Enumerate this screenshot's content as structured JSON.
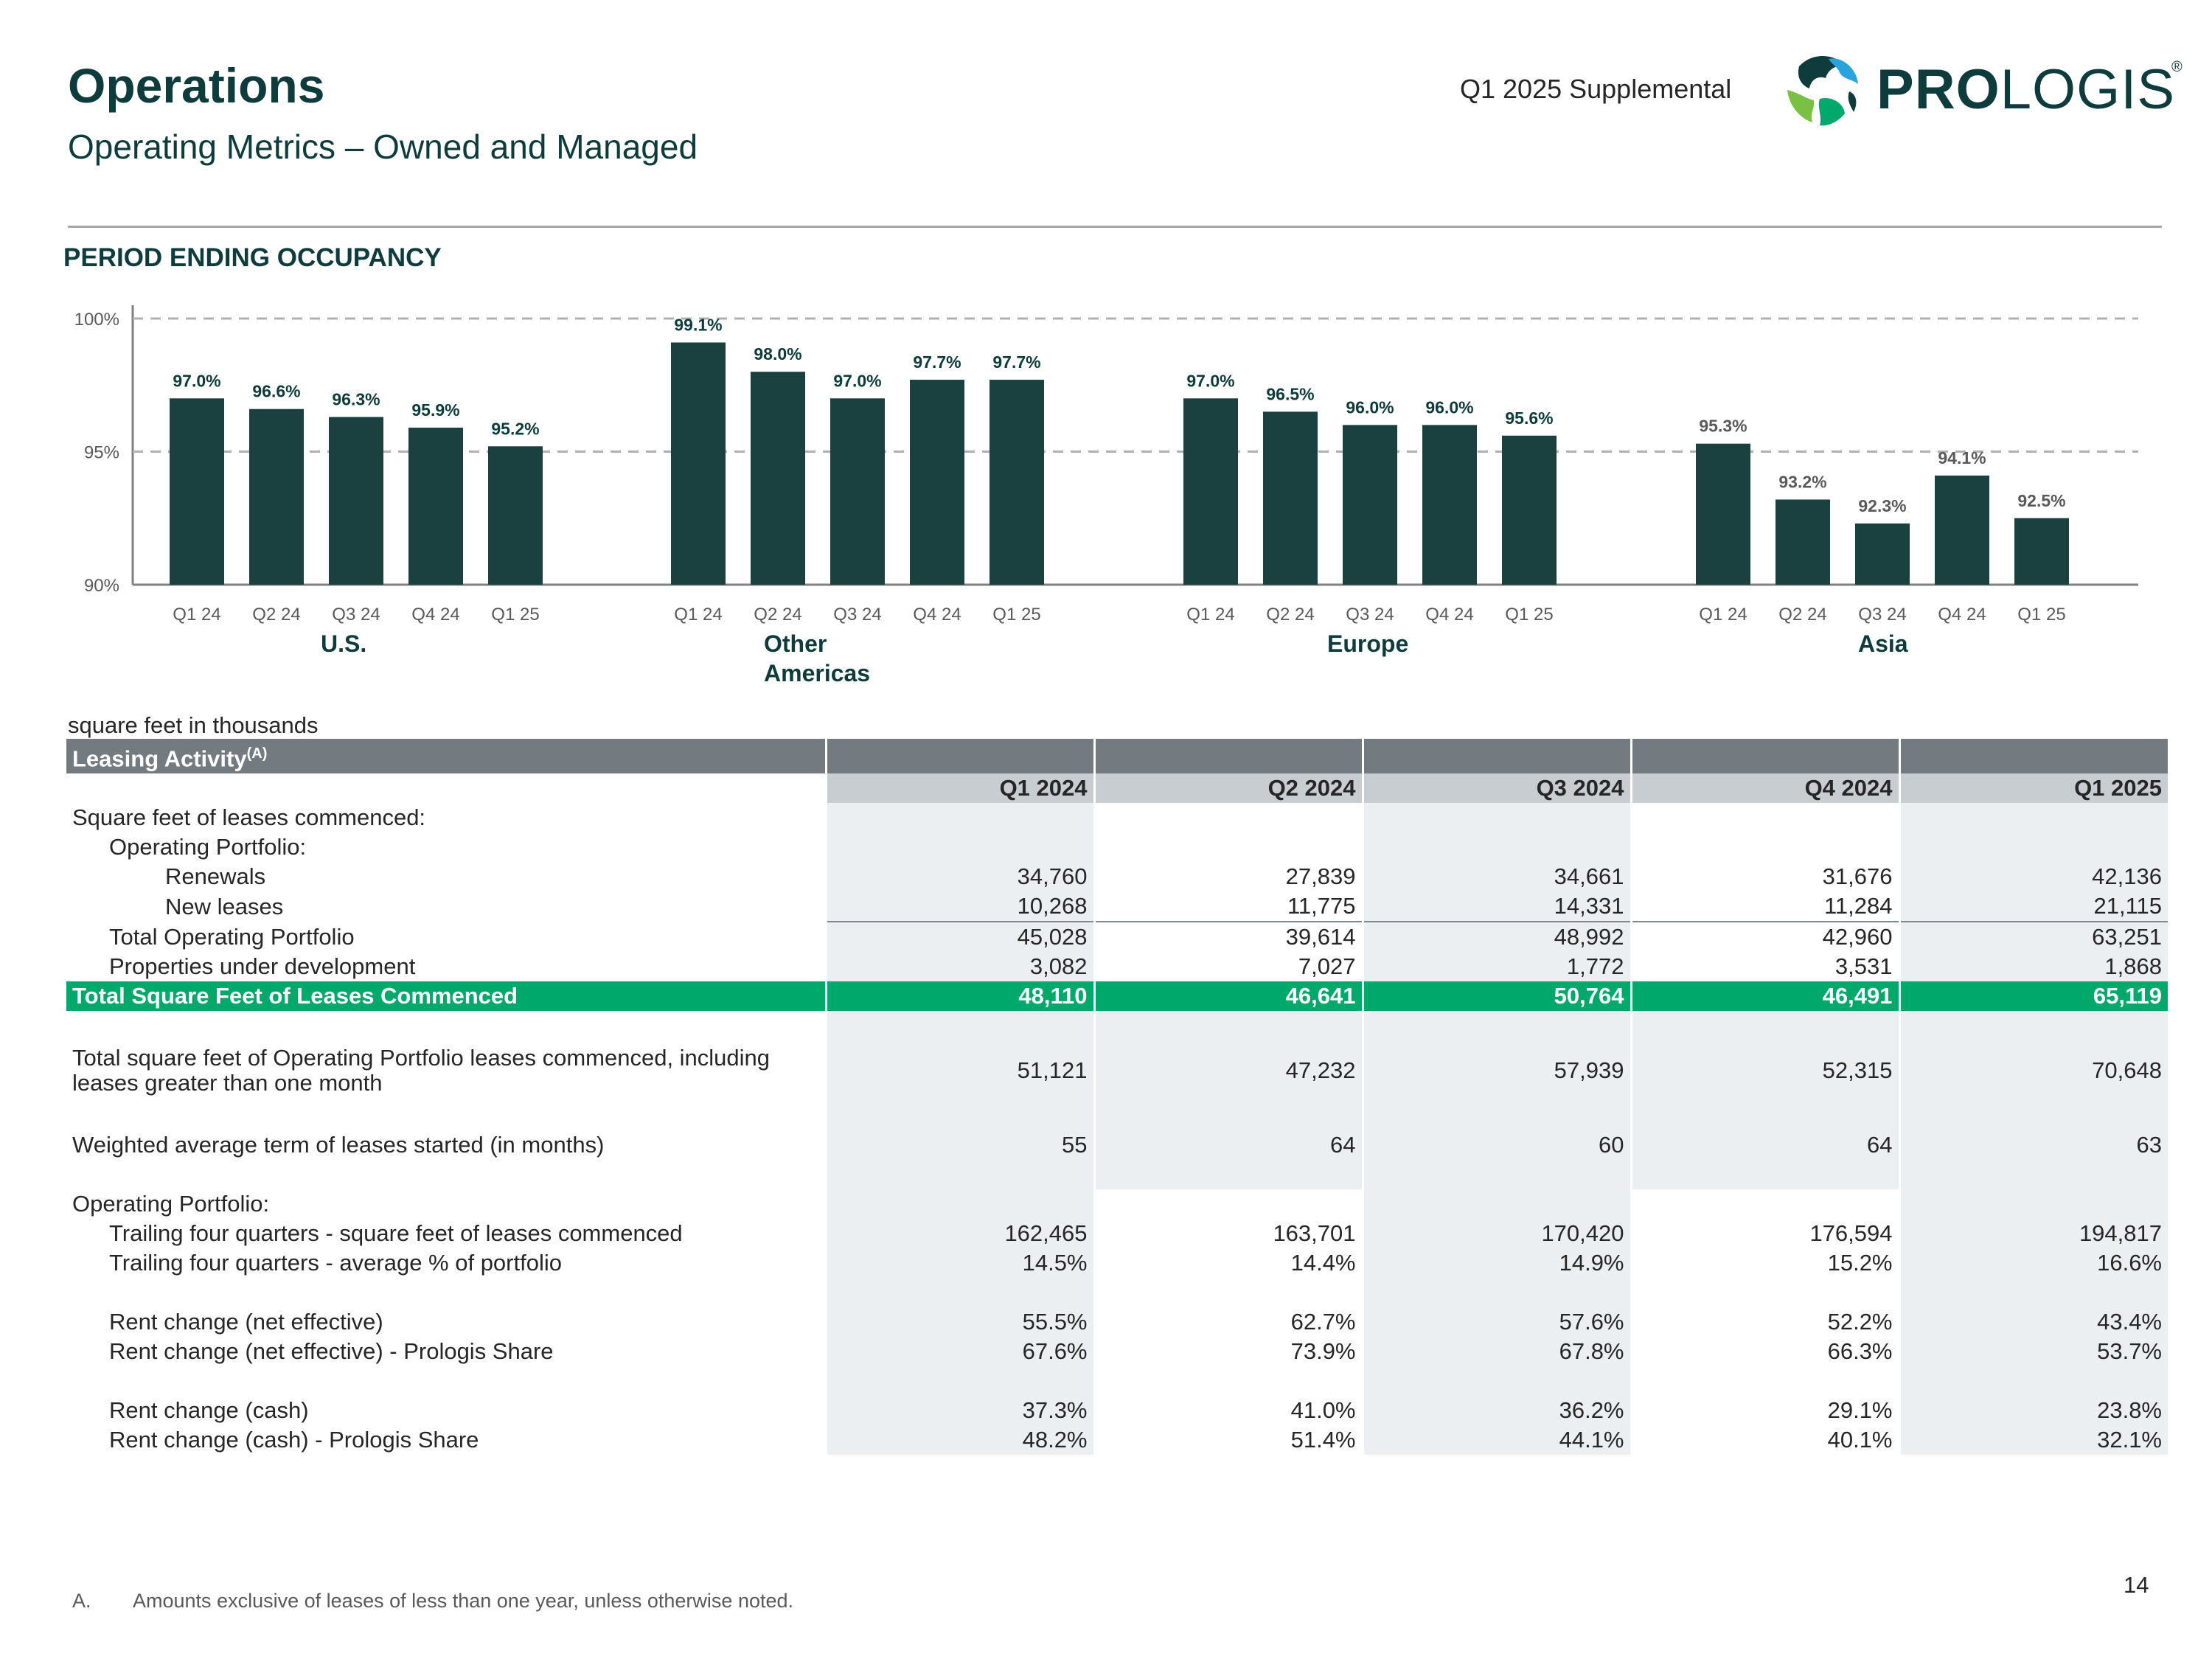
{
  "header": {
    "title": "Operations",
    "subtitle": "Operating Metrics – Owned and Managed",
    "supplemental": "Q1 2025 Supplemental",
    "logo_bold": "PRO",
    "logo_rest": "LOGIS",
    "logo_reg": "®"
  },
  "occupancy_heading": "PERIOD ENDING OCCUPANCY",
  "chart_data": {
    "type": "bar",
    "title": "PERIOD ENDING OCCUPANCY",
    "ylim": [
      90,
      100
    ],
    "yticks": [
      "100%",
      "95%",
      "90%"
    ],
    "ytick_values": [
      100,
      95,
      90
    ],
    "grid": true,
    "bar_color": "#1a4040",
    "groups": [
      {
        "name": "U.S.",
        "categories": [
          "Q1 24",
          "Q2 24",
          "Q3 24",
          "Q4 24",
          "Q1 25"
        ],
        "values": [
          97.0,
          96.6,
          96.3,
          95.9,
          95.2
        ],
        "labels": [
          "97.0%",
          "96.6%",
          "96.3%",
          "95.9%",
          "95.2%"
        ]
      },
      {
        "name": "Other Americas",
        "categories": [
          "Q1 24",
          "Q2 24",
          "Q3 24",
          "Q4 24",
          "Q1 25"
        ],
        "values": [
          99.1,
          98.0,
          97.0,
          97.7,
          97.7
        ],
        "labels": [
          "99.1%",
          "98.0%",
          "97.0%",
          "97.7%",
          "97.7%"
        ]
      },
      {
        "name": "Europe",
        "categories": [
          "Q1 24",
          "Q2 24",
          "Q3 24",
          "Q4 24",
          "Q1 25"
        ],
        "values": [
          97.0,
          96.5,
          96.0,
          96.0,
          95.6
        ],
        "labels": [
          "97.0%",
          "96.5%",
          "96.0%",
          "96.0%",
          "95.6%"
        ]
      },
      {
        "name": "Asia",
        "categories": [
          "Q1 24",
          "Q2 24",
          "Q3 24",
          "Q4 24",
          "Q1 25"
        ],
        "values": [
          95.3,
          93.2,
          92.3,
          94.1,
          92.5
        ],
        "labels": [
          "95.3%",
          "93.2%",
          "92.3%",
          "94.1%",
          "92.5%"
        ]
      }
    ]
  },
  "table": {
    "units_note": "square feet in thousands",
    "section_title": "Leasing Activity",
    "section_sup": "(A)",
    "columns": [
      "Q1 2024",
      "Q2 2024",
      "Q3 2024",
      "Q4 2024",
      "Q1 2025"
    ],
    "rows": {
      "sf_commenced_label": "Square feet of leases commenced:",
      "op_portfolio_label": "Operating Portfolio:",
      "renewals": {
        "label": "Renewals",
        "values": [
          "34,760",
          "27,839",
          "34,661",
          "31,676",
          "42,136"
        ]
      },
      "new_leases": {
        "label": "New leases",
        "values": [
          "10,268",
          "11,775",
          "14,331",
          "11,284",
          "21,115"
        ]
      },
      "total_op": {
        "label": "Total Operating Portfolio",
        "values": [
          "45,028",
          "39,614",
          "48,992",
          "42,960",
          "63,251"
        ]
      },
      "under_dev": {
        "label": "Properties under development",
        "values": [
          "3,082",
          "7,027",
          "1,772",
          "3,531",
          "1,868"
        ]
      },
      "total_sf": {
        "label": "Total Square Feet of Leases Commenced",
        "values": [
          "48,110",
          "46,641",
          "50,764",
          "46,491",
          "65,119"
        ]
      },
      "total_incl_month": {
        "label": "Total square feet of Operating Portfolio leases commenced, including leases greater than one month",
        "values": [
          "51,121",
          "47,232",
          "57,939",
          "52,315",
          "70,648"
        ]
      },
      "wat": {
        "label": "Weighted average term of leases started (in months)",
        "values": [
          "55",
          "64",
          "60",
          "64",
          "63"
        ]
      },
      "op_portfolio_label2": "Operating Portfolio:",
      "t4q_sf": {
        "label": "Trailing four quarters - square feet of leases commenced",
        "values": [
          "162,465",
          "163,701",
          "170,420",
          "176,594",
          "194,817"
        ]
      },
      "t4q_pct": {
        "label": "Trailing four quarters - average % of portfolio",
        "values": [
          "14.5%",
          "14.4%",
          "14.9%",
          "15.2%",
          "16.6%"
        ]
      },
      "rc_net": {
        "label": "Rent change (net effective)",
        "values": [
          "55.5%",
          "62.7%",
          "57.6%",
          "52.2%",
          "43.4%"
        ]
      },
      "rc_net_share": {
        "label": "Rent change (net effective) - Prologis Share",
        "values": [
          "67.6%",
          "73.9%",
          "67.8%",
          "66.3%",
          "53.7%"
        ]
      },
      "rc_cash": {
        "label": "Rent change (cash)",
        "values": [
          "37.3%",
          "41.0%",
          "36.2%",
          "29.1%",
          "23.8%"
        ]
      },
      "rc_cash_share": {
        "label": "Rent change (cash) - Prologis Share",
        "values": [
          "48.2%",
          "51.4%",
          "44.1%",
          "40.1%",
          "32.1%"
        ]
      }
    }
  },
  "footnote": {
    "letter": "A.",
    "text": "Amounts exclusive of leases of less than one year, unless otherwise noted."
  },
  "page_number": "14"
}
